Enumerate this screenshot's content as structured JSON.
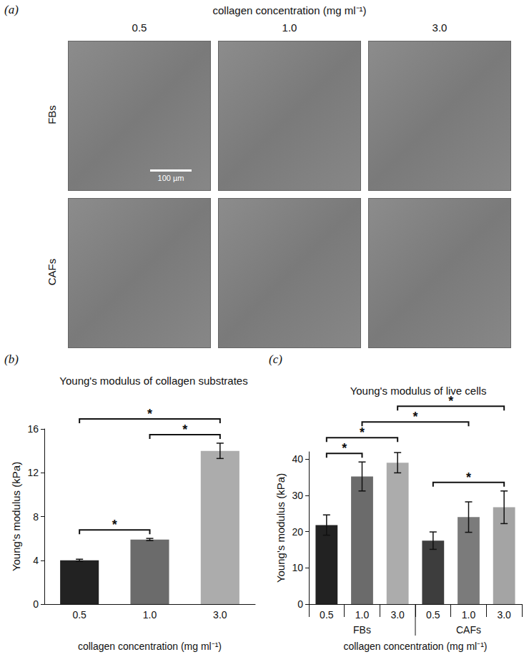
{
  "panel_a": {
    "label": "(a)",
    "title": "collagen concentration (mg ml⁻¹)",
    "columns": [
      "0.5",
      "1.0",
      "3.0"
    ],
    "rows": [
      "FBs",
      "CAFs"
    ],
    "scale_bar": "100 µm"
  },
  "chart_data": [
    {
      "type": "bar",
      "panel": "(b)",
      "title": "Young's modulus of collagen substrates",
      "x_label": "collagen concentration (mg ml⁻¹)",
      "y_label": "Young's modulus (kPa)",
      "categories": [
        "0.5",
        "1.0",
        "3.0"
      ],
      "values": [
        4.0,
        5.9,
        14.0
      ],
      "errors": [
        0.1,
        0.1,
        0.7
      ],
      "colors": [
        "#222222",
        "#6b6b6b",
        "#acacac"
      ],
      "ylim": [
        0,
        16
      ],
      "yticks": [
        0,
        4,
        8,
        12,
        16
      ],
      "grid": false,
      "significance": [
        {
          "pair": [
            0,
            1
          ],
          "label": "*"
        },
        {
          "pair": [
            1,
            2
          ],
          "label": "*"
        },
        {
          "pair": [
            0,
            2
          ],
          "label": "*"
        }
      ]
    },
    {
      "type": "bar",
      "panel": "(c)",
      "title": "Young's modulus of live cells",
      "x_label": "collagen concentration (mg ml⁻¹)",
      "y_label": "Young's modulus (kPa)",
      "categories": [
        "0.5",
        "1.0",
        "3.0",
        "0.5",
        "1.0",
        "3.0"
      ],
      "values": [
        21.8,
        35.2,
        39.0,
        17.5,
        24.0,
        26.7
      ],
      "errors": [
        2.8,
        4.0,
        2.8,
        2.4,
        4.2,
        4.5
      ],
      "groups": [
        {
          "label": "FBs",
          "count": 3
        },
        {
          "label": "CAFs",
          "count": 3
        }
      ],
      "colors": [
        "#222222",
        "#6b6b6b",
        "#acacac",
        "#3d3d3d",
        "#7b7b7b",
        "#a4a4a4"
      ],
      "ylim": [
        0,
        42
      ],
      "yticks": [
        0,
        10,
        20,
        30,
        40
      ],
      "grid": false,
      "significance": [
        {
          "pair": [
            3,
            5
          ],
          "label": "*"
        },
        {
          "pair": [
            0,
            1
          ],
          "label": "*"
        },
        {
          "pair": [
            0,
            2
          ],
          "label": "*"
        },
        {
          "pair": [
            1,
            4
          ],
          "label": "*"
        },
        {
          "pair": [
            2,
            5
          ],
          "label": "*"
        }
      ]
    }
  ]
}
